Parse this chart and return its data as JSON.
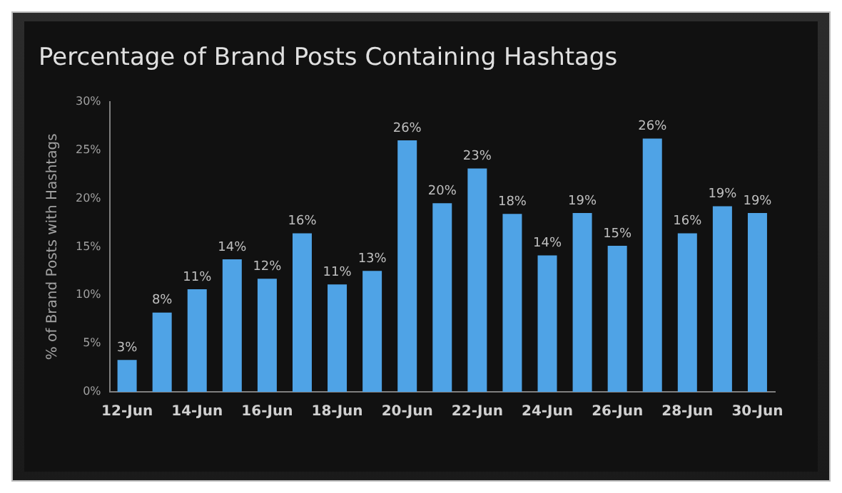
{
  "chart_data": {
    "type": "bar",
    "title": "Percentage of Brand Posts Containing Hashtags",
    "ylabel": "% of Brand Posts with Hashtags",
    "categories": [
      "12-Jun",
      null,
      "14-Jun",
      null,
      "16-Jun",
      null,
      "18-Jun",
      null,
      "20-Jun",
      null,
      "22-Jun",
      null,
      "24-Jun",
      null,
      "26-Jun",
      null,
      "28-Jun",
      null,
      "30-Jun"
    ],
    "values": [
      3.3,
      8.2,
      10.6,
      13.7,
      11.7,
      16.4,
      11.1,
      12.5,
      26.0,
      19.5,
      23.1,
      18.4,
      14.1,
      18.5,
      15.1,
      26.2,
      16.4,
      19.2,
      18.5
    ],
    "value_labels": [
      "3%",
      "8%",
      "11%",
      "14%",
      "12%",
      "16%",
      "11%",
      "13%",
      "26%",
      "20%",
      "23%",
      "18%",
      "14%",
      "19%",
      "15%",
      "26%",
      "16%",
      "19%",
      "19%"
    ],
    "color": "#4fa3e6",
    "ylim": [
      0,
      30
    ],
    "yticks": [
      {
        "value": 0,
        "label": "0%"
      },
      {
        "value": 5,
        "label": "5%"
      },
      {
        "value": 10,
        "label": "10%"
      },
      {
        "value": 15,
        "label": "15%"
      },
      {
        "value": 20,
        "label": "20%"
      },
      {
        "value": 25,
        "label": "25%"
      },
      {
        "value": 30,
        "label": "30%"
      }
    ],
    "grid": false,
    "legend": false
  }
}
